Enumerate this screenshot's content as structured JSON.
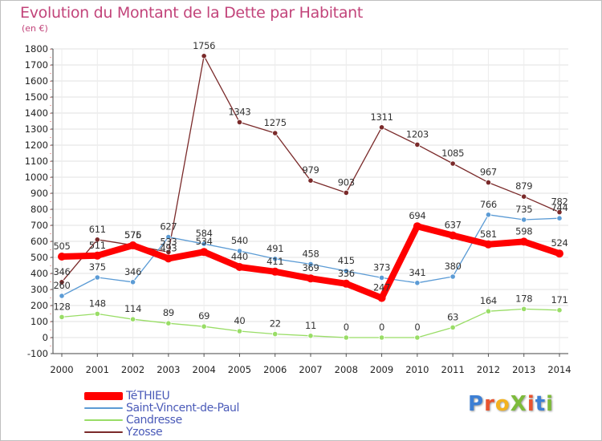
{
  "title": "Evolution du Montant de la Dette par Habitant",
  "unit_label": "(en €)",
  "logo_text": "ProXiti",
  "logo_colors": [
    "#3d7fd4",
    "#e8532f",
    "#f3b21f",
    "#7dbb3a",
    "#e8532f",
    "#3d7fd4",
    "#7dbb3a"
  ],
  "chart_data": {
    "type": "line",
    "x": [
      2000,
      2001,
      2002,
      2003,
      2004,
      2005,
      2006,
      2007,
      2008,
      2009,
      2010,
      2011,
      2012,
      2013,
      2014
    ],
    "ylim": [
      -100,
      1800
    ],
    "yticks": [
      -100,
      0,
      100,
      200,
      300,
      400,
      500,
      600,
      700,
      800,
      900,
      1000,
      1100,
      1200,
      1300,
      1400,
      1500,
      1600,
      1700,
      1800
    ],
    "grid": true,
    "legend_position": "bottom-left",
    "series": [
      {
        "name": "TéTHIEU",
        "color": "#ff0000",
        "values": [
          505,
          511,
          575,
          493,
          534,
          440,
          411,
          369,
          336,
          247,
          694,
          637,
          581,
          598,
          524
        ]
      },
      {
        "name": "Saint-Vincent-de-Paul",
        "color": "#5b9bd5",
        "values": [
          260,
          375,
          346,
          627,
          584,
          540,
          491,
          458,
          415,
          373,
          341,
          380,
          766,
          735,
          744
        ]
      },
      {
        "name": "Candresse",
        "color": "#99dd66",
        "values": [
          128,
          148,
          114,
          89,
          69,
          40,
          22,
          11,
          0,
          0,
          0,
          63,
          164,
          178,
          171
        ]
      },
      {
        "name": "Yzosse",
        "color": "#7a2a2a",
        "values": [
          346,
          611,
          576,
          533,
          1756,
          1343,
          1275,
          979,
          903,
          1311,
          1203,
          1085,
          967,
          879,
          782
        ]
      }
    ]
  }
}
